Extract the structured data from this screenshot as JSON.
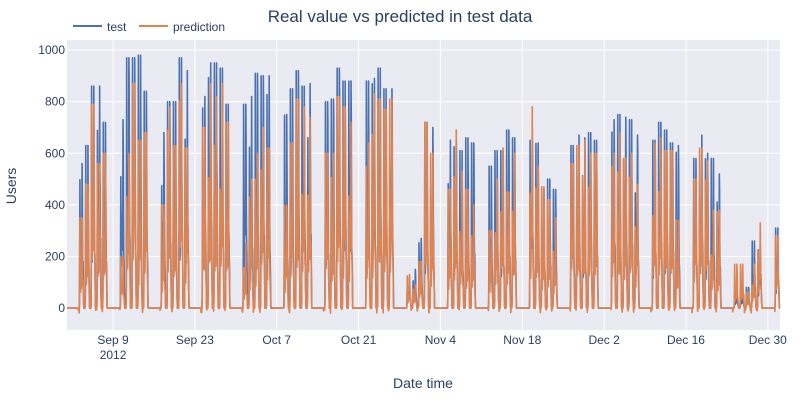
{
  "chart_data": {
    "type": "line",
    "title": "Real value vs predicted in test data",
    "xlabel": "Date time",
    "ylabel": "Users",
    "xlim": [
      "2012-09-01T03:00",
      "2013-01-01T02:00"
    ],
    "ylim": [
      -85,
      1039
    ],
    "grid": true,
    "legend_placement": "top-left",
    "yticks": [
      0,
      200,
      400,
      600,
      800,
      1000
    ],
    "xticks": [
      {
        "date": "2012-09-09",
        "label": "Sep 9",
        "sub": "2012"
      },
      {
        "date": "2012-09-23",
        "label": "Sep 23"
      },
      {
        "date": "2012-10-07",
        "label": "Oct 7"
      },
      {
        "date": "2012-10-21",
        "label": "Oct 21"
      },
      {
        "date": "2012-11-04",
        "label": "Nov 4"
      },
      {
        "date": "2012-11-18",
        "label": "Nov 18"
      },
      {
        "date": "2012-12-02",
        "label": "Dec 2"
      },
      {
        "date": "2012-12-16",
        "label": "Dec 16"
      },
      {
        "date": "2012-12-30",
        "label": "Dec 30"
      }
    ],
    "block_start_dates": [
      "2012-09-03",
      "2012-09-10",
      "2012-09-17",
      "2012-09-24",
      "2012-10-01",
      "2012-10-08",
      "2012-10-15",
      "2012-10-22",
      "2012-10-29",
      "2012-11-05",
      "2012-11-12",
      "2012-11-19",
      "2012-11-26",
      "2012-12-03",
      "2012-12-10",
      "2012-12-17",
      "2012-12-24",
      "2012-12-31"
    ],
    "series": [
      {
        "name": "test",
        "color": "#4c72b0",
        "daily_peaks": [
          [
            560,
            630,
            860,
            860,
            720
          ],
          [
            730,
            970,
            970,
            980,
            840
          ],
          [
            680,
            800,
            800,
            970,
            920
          ],
          [
            820,
            950,
            950,
            930,
            790
          ],
          [
            790,
            820,
            910,
            900,
            900
          ],
          [
            750,
            850,
            920,
            860,
            870
          ],
          [
            800,
            810,
            930,
            880,
            880
          ],
          [
            880,
            890,
            930,
            850,
            850
          ],
          [
            120,
            150,
            270,
            720,
            700
          ],
          [
            650,
            650,
            610,
            660,
            640
          ],
          [
            550,
            610,
            610,
            690,
            660
          ],
          [
            650,
            640,
            460,
            500,
            460
          ],
          [
            630,
            670,
            660,
            680,
            650
          ],
          [
            730,
            750,
            740,
            730,
            670
          ],
          [
            650,
            720,
            690,
            640,
            630
          ],
          [
            580,
            670,
            600,
            580,
            520
          ],
          [
            60,
            60,
            80,
            260,
            240
          ],
          [
            310
          ]
        ]
      },
      {
        "name": "prediction",
        "color": "#dd8452",
        "daily_peaks": [
          [
            350,
            480,
            790,
            560,
            600
          ],
          [
            200,
            600,
            870,
            650,
            680
          ],
          [
            400,
            780,
            630,
            870,
            620
          ],
          [
            700,
            870,
            820,
            870,
            720
          ],
          [
            250,
            500,
            600,
            700,
            620
          ],
          [
            400,
            640,
            810,
            780,
            740
          ],
          [
            600,
            600,
            820,
            780,
            720
          ],
          [
            640,
            830,
            810,
            770,
            810
          ],
          [
            130,
            90,
            180,
            720,
            600
          ],
          [
            460,
            690,
            530,
            460,
            400
          ],
          [
            300,
            500,
            620,
            450,
            600
          ],
          [
            780,
            550,
            470,
            420,
            350
          ],
          [
            560,
            630,
            650,
            600,
            600
          ],
          [
            600,
            680,
            580,
            600,
            480
          ],
          [
            640,
            660,
            610,
            610,
            340
          ],
          [
            500,
            620,
            570,
            380,
            380
          ],
          [
            170,
            170,
            60,
            170,
            330
          ],
          [
            280
          ]
        ]
      }
    ]
  }
}
